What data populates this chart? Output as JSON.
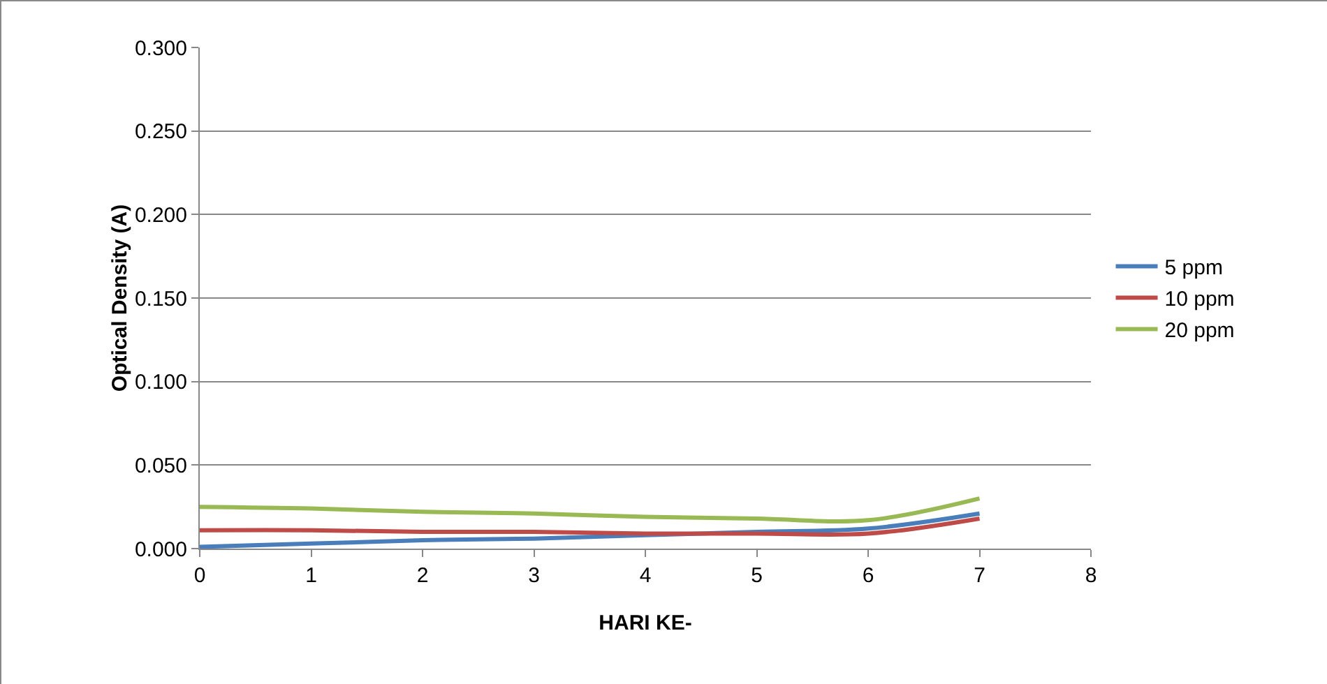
{
  "chart_data": {
    "type": "line",
    "xlabel": "HARI KE-",
    "ylabel": "Optical Density (A)",
    "x": [
      0,
      1,
      2,
      3,
      4,
      5,
      6,
      7
    ],
    "series": [
      {
        "name": "5 ppm",
        "color": "#4a7ebb",
        "values": [
          0.001,
          0.003,
          0.005,
          0.006,
          0.008,
          0.01,
          0.012,
          0.021
        ]
      },
      {
        "name": "10 ppm",
        "color": "#be4b48",
        "values": [
          0.011,
          0.011,
          0.01,
          0.01,
          0.009,
          0.009,
          0.009,
          0.018
        ]
      },
      {
        "name": "20 ppm",
        "color": "#98b954",
        "values": [
          0.025,
          0.024,
          0.022,
          0.021,
          0.019,
          0.018,
          0.017,
          0.03
        ]
      }
    ],
    "xlim": [
      0,
      8
    ],
    "xticks": [
      0,
      1,
      2,
      3,
      4,
      5,
      6,
      7,
      8
    ],
    "ylim": [
      0,
      0.3
    ],
    "yticks": [
      {
        "value": 0,
        "label": "0.000"
      },
      {
        "value": 0.05,
        "label": "0.050"
      },
      {
        "value": 0.1,
        "label": "0.100"
      },
      {
        "value": 0.15,
        "label": "0.150"
      },
      {
        "value": 0.2,
        "label": "0.200"
      },
      {
        "value": 0.25,
        "label": "0.250"
      },
      {
        "value": 0.3,
        "label": "0.300"
      }
    ],
    "grid": "y",
    "legend": "right",
    "marker": "none",
    "line_style": "solid"
  }
}
